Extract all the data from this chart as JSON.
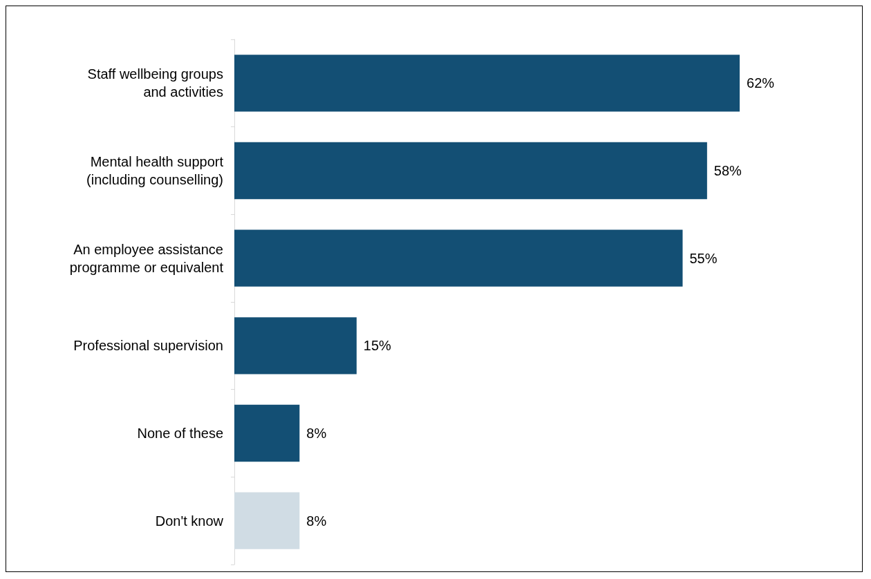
{
  "chart_data": {
    "type": "bar",
    "orientation": "horizontal",
    "categories": [
      "Staff wellbeing groups\nand activities",
      "Mental health support\n(including counselling)",
      "An employee assistance\nprogramme or equivalent",
      "Professional supervision",
      "None of these",
      "Don't know"
    ],
    "values": [
      62,
      58,
      55,
      15,
      8,
      8
    ],
    "colors": [
      "#134f74",
      "#134f74",
      "#134f74",
      "#134f74",
      "#134f74",
      "#d0dce4"
    ],
    "value_labels": [
      "62%",
      "58%",
      "55%",
      "15%",
      "8%",
      "8%"
    ]
  }
}
